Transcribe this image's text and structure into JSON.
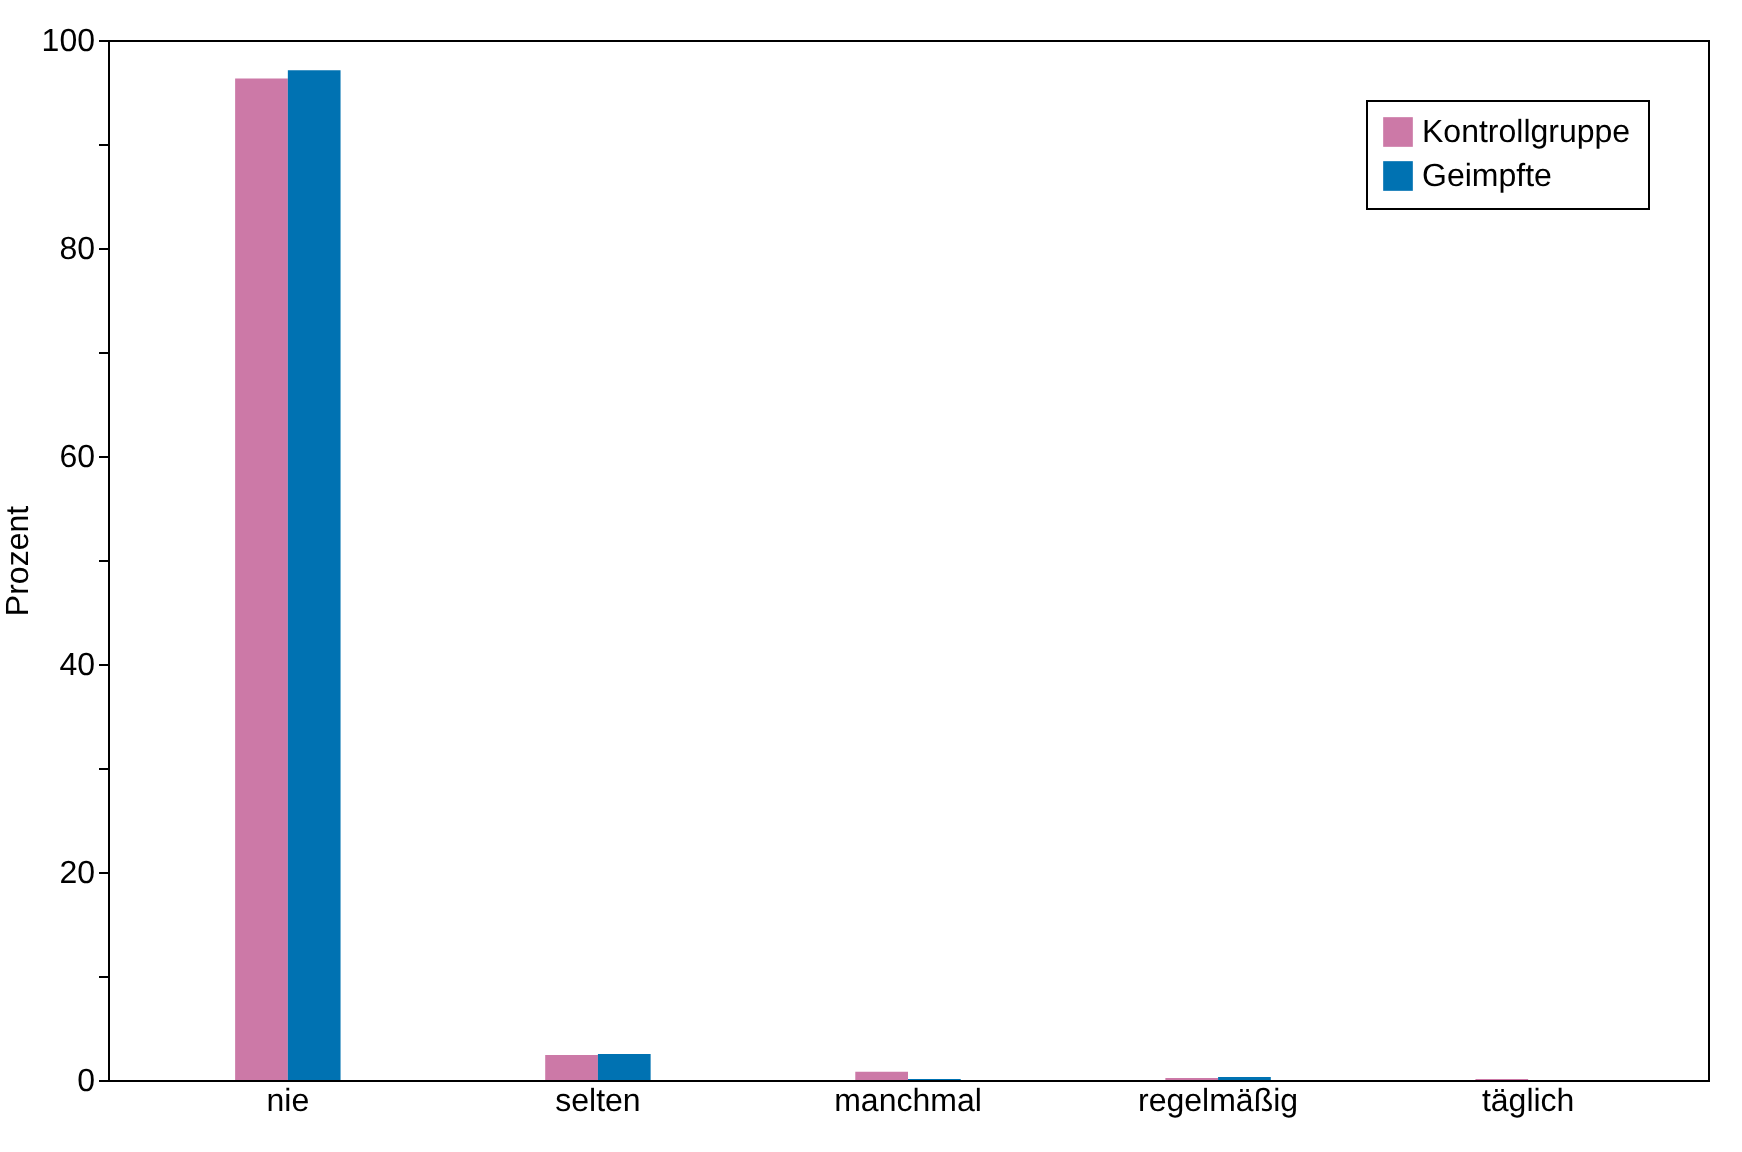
{
  "chart_data": {
    "type": "bar",
    "ylabel": "Prozent",
    "categories": [
      "nie",
      "selten",
      "manchmal",
      "regelmäßig",
      "täglich"
    ],
    "series": [
      {
        "name": "Kontrollgruppe",
        "color": "#cc79a7",
        "values": [
          96.3,
          2.4,
          0.8,
          0.2,
          0.1
        ]
      },
      {
        "name": "Geimpfte",
        "color": "#0072b2",
        "values": [
          97.1,
          2.5,
          0.1,
          0.3,
          0.0
        ]
      }
    ],
    "ylim": [
      0,
      100
    ],
    "yticks": [
      0,
      {
        "value": 10,
        "label": null
      },
      20,
      {
        "value": 30,
        "label": null
      },
      40,
      {
        "value": 50,
        "label": null
      },
      60,
      {
        "value": 70,
        "label": null
      },
      80,
      {
        "value": 90,
        "label": null
      },
      100
    ],
    "grid": false,
    "legend": "top right"
  }
}
